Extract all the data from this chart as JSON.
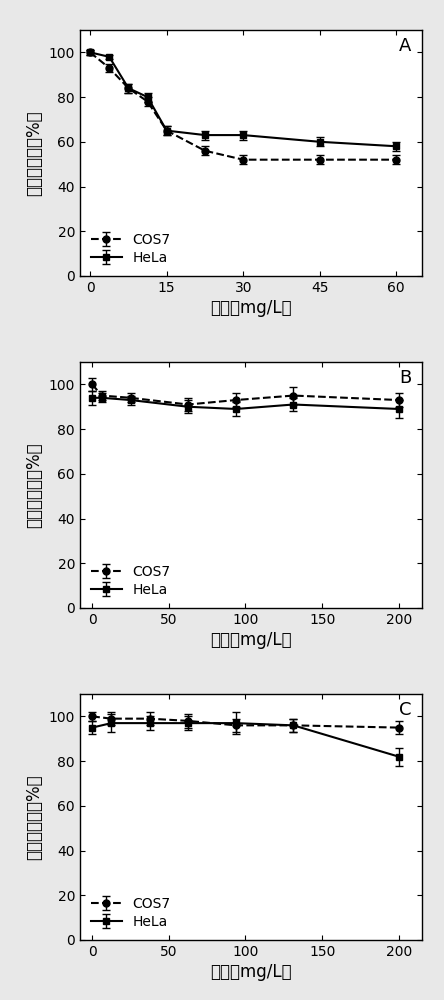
{
  "panels": [
    {
      "label": "A",
      "xlim": [
        -2,
        65
      ],
      "ylim": [
        0,
        110
      ],
      "xticks": [
        0,
        15,
        30,
        45,
        60
      ],
      "yticks": [
        0,
        20,
        40,
        60,
        80,
        100
      ],
      "cos7_x": [
        0,
        3.75,
        7.5,
        11.25,
        15,
        22.5,
        30,
        45,
        60
      ],
      "cos7_y": [
        100,
        93,
        84,
        78,
        65,
        56,
        52,
        52,
        52
      ],
      "cos7_err": [
        1,
        2,
        2,
        2,
        2,
        2,
        2,
        2,
        2
      ],
      "hela_x": [
        0,
        3.75,
        7.5,
        11.25,
        15,
        22.5,
        30,
        45,
        60
      ],
      "hela_y": [
        100,
        98,
        84,
        80,
        65,
        63,
        63,
        60,
        58
      ],
      "hela_err": [
        1,
        1,
        2,
        2,
        2,
        2,
        2,
        2,
        2
      ]
    },
    {
      "label": "B",
      "xlim": [
        -8,
        215
      ],
      "ylim": [
        0,
        110
      ],
      "xticks": [
        0,
        50,
        100,
        150,
        200
      ],
      "yticks": [
        0,
        20,
        40,
        60,
        80,
        100
      ],
      "cos7_x": [
        0,
        6.25,
        25,
        62.5,
        93.75,
        131.25,
        200
      ],
      "cos7_y": [
        100,
        95,
        94,
        91,
        93,
        95,
        93
      ],
      "cos7_err": [
        3,
        2,
        2,
        3,
        3,
        4,
        3
      ],
      "hela_x": [
        0,
        6.25,
        25,
        62.5,
        93.75,
        131.25,
        200
      ],
      "hela_y": [
        94,
        94,
        93,
        90,
        89,
        91,
        89
      ],
      "hela_err": [
        3,
        2,
        2,
        3,
        3,
        3,
        4
      ]
    },
    {
      "label": "C",
      "xlim": [
        -8,
        215
      ],
      "ylim": [
        0,
        110
      ],
      "xticks": [
        0,
        50,
        100,
        150,
        200
      ],
      "yticks": [
        0,
        20,
        40,
        60,
        80,
        100
      ],
      "cos7_x": [
        0,
        12.5,
        37.5,
        62.5,
        93.75,
        131.25,
        200
      ],
      "cos7_y": [
        100,
        99,
        99,
        98,
        96,
        96,
        95
      ],
      "cos7_err": [
        2,
        3,
        3,
        3,
        3,
        3,
        3
      ],
      "hela_x": [
        0,
        12.5,
        37.5,
        62.5,
        93.75,
        131.25,
        200
      ],
      "hela_y": [
        95,
        97,
        97,
        97,
        97,
        96,
        82
      ],
      "hela_err": [
        3,
        4,
        3,
        3,
        5,
        3,
        4
      ]
    }
  ],
  "ylabel_chars": [
    "细",
    "胞",
    "存",
    "活",
    "率",
    "（",
    "%",
    "）"
  ],
  "ylabel_full": "细胞存活率（%）",
  "xlabel": "浓度（mg/L）",
  "cos7_label": "COS7",
  "hela_label": "HeLa",
  "bg_color": "#e8e8e8",
  "plot_bg": "#ffffff",
  "line_color": "#000000",
  "marker_size": 5,
  "legend_fontsize": 10,
  "tick_fontsize": 10,
  "label_fontsize": 12,
  "panel_label_fontsize": 13
}
